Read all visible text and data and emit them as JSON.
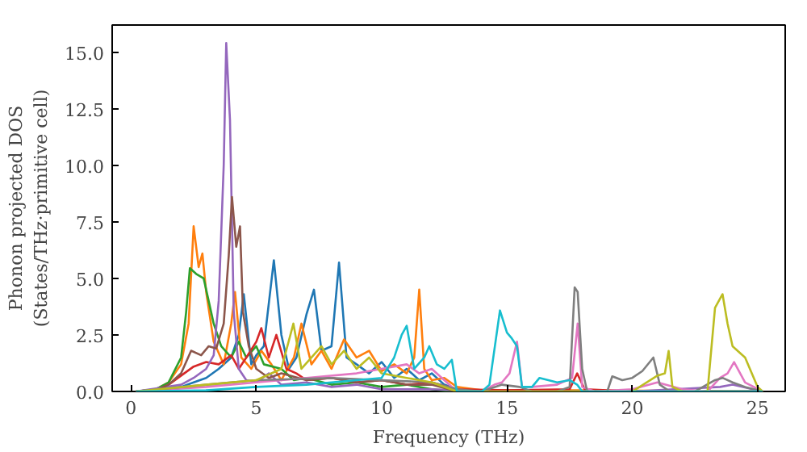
{
  "chart_data": {
    "type": "line",
    "xlabel": "Frequency (THz)",
    "ylabel": "Phonon projected DOS\n(States/THz·primitive cell)",
    "xlim": [
      -0.75,
      26.1
    ],
    "ylim": [
      0,
      16.2
    ],
    "xticks": [
      0,
      5,
      10,
      15,
      20,
      25
    ],
    "yticks": [
      {
        "value": 0,
        "label": "0.0"
      },
      {
        "value": 2.5,
        "label": "2.5"
      },
      {
        "value": 5,
        "label": "5.0"
      },
      {
        "value": 7.5,
        "label": "7.5"
      },
      {
        "value": 10,
        "label": "10.0"
      },
      {
        "value": 12.5,
        "label": "12.5"
      },
      {
        "value": 15,
        "label": "15.0"
      }
    ],
    "grid": false,
    "line_style": "solid",
    "series": [
      {
        "color": "#1f77b4",
        "x": [
          0.2,
          1,
          2,
          2.5,
          3,
          3.5,
          4,
          4.3,
          4.5,
          4.8,
          5,
          5.3,
          5.7,
          6,
          6.3,
          6.6,
          7,
          7.3,
          7.6,
          8,
          8.3,
          8.6,
          9,
          9.5,
          10,
          10.5,
          11,
          11.5,
          12,
          12.5,
          13,
          13.5,
          15,
          20,
          25.2
        ],
        "values": [
          0,
          0.05,
          0.2,
          0.4,
          0.6,
          1.0,
          1.5,
          2.5,
          4.3,
          1.2,
          1.6,
          2.0,
          5.8,
          2.5,
          1.0,
          1.5,
          3.4,
          4.5,
          1.8,
          2.0,
          5.7,
          1.5,
          1.2,
          0.8,
          1.3,
          0.6,
          1.0,
          0.5,
          0.8,
          0.3,
          0.1,
          0,
          0.05,
          0,
          0
        ]
      },
      {
        "color": "#ff7f0e",
        "x": [
          0.2,
          1,
          1.5,
          2,
          2.3,
          2.5,
          2.7,
          2.85,
          3,
          3.3,
          3.7,
          4.0,
          4.15,
          4.4,
          4.8,
          5.2,
          5.6,
          6,
          6.5,
          6.8,
          7.2,
          7.6,
          8,
          8.5,
          9,
          9.5,
          10,
          10.5,
          11,
          11.3,
          11.5,
          11.7,
          12,
          12.5,
          13,
          14,
          18,
          25.2
        ],
        "values": [
          0,
          0.1,
          0.4,
          1.2,
          3.0,
          7.3,
          5.5,
          6.1,
          4.4,
          2.2,
          1.2,
          3.0,
          4.4,
          1.5,
          1.0,
          1.8,
          1.2,
          0.5,
          1.5,
          3.0,
          1.2,
          1.8,
          1.0,
          2.3,
          1.5,
          1.8,
          0.9,
          1.2,
          0.8,
          1.5,
          4.5,
          1.0,
          0.5,
          0.6,
          0.2,
          0.05,
          0.05,
          0
        ]
      },
      {
        "color": "#2ca02c",
        "x": [
          0.2,
          1,
          1.5,
          2,
          2.2,
          2.35,
          2.6,
          2.9,
          3.1,
          3.3,
          3.6,
          4,
          4.3,
          4.6,
          5,
          5.3,
          6,
          6.5,
          7,
          8,
          9,
          10,
          11,
          12,
          13,
          15,
          25.2
        ],
        "values": [
          0,
          0.1,
          0.4,
          1.5,
          3.5,
          5.45,
          5.2,
          5.0,
          4.0,
          3.0,
          2.0,
          1.5,
          2.2,
          1.5,
          2.0,
          1.2,
          1.0,
          0.5,
          0.6,
          0.3,
          0.4,
          0.2,
          0.3,
          0.1,
          0,
          0,
          0
        ]
      },
      {
        "color": "#d62728",
        "x": [
          0.2,
          1,
          1.5,
          2,
          2.5,
          3,
          3.5,
          4,
          4.3,
          4.6,
          5,
          5.2,
          5.5,
          5.8,
          6.2,
          6.6,
          7,
          8,
          9,
          10,
          11,
          12,
          13,
          15,
          17.5,
          17.8,
          18.1,
          20,
          25.2
        ],
        "values": [
          0,
          0.05,
          0.3,
          0.7,
          1.1,
          1.3,
          1.2,
          1.6,
          1.0,
          1.5,
          2.2,
          2.8,
          1.5,
          2.5,
          1.0,
          0.8,
          0.5,
          0.6,
          0.4,
          0.5,
          0.3,
          0.4,
          0.1,
          0.05,
          0.1,
          0.8,
          0.1,
          0,
          0
        ]
      },
      {
        "color": "#9467bd",
        "x": [
          0.2,
          2,
          2.5,
          3,
          3.3,
          3.5,
          3.7,
          3.8,
          3.95,
          4.1,
          4.3,
          4.6,
          5,
          5.5,
          6,
          7,
          8,
          9,
          10,
          12,
          14,
          20,
          23.5,
          24,
          25.2
        ],
        "values": [
          0,
          0.3,
          0.6,
          1.0,
          1.6,
          4.0,
          10,
          15.4,
          12,
          3.5,
          1.0,
          0.5,
          0.4,
          0.8,
          0.3,
          0.4,
          0.2,
          0.3,
          0.1,
          0.1,
          0,
          0,
          0.2,
          0.3,
          0
        ]
      },
      {
        "color": "#8c564b",
        "x": [
          0.2,
          1,
          1.5,
          2,
          2.4,
          2.8,
          3.1,
          3.4,
          3.7,
          3.9,
          4.03,
          4.2,
          4.35,
          4.47,
          4.7,
          5,
          5.5,
          6,
          7,
          8,
          9,
          10,
          11,
          12,
          13,
          25.2
        ],
        "values": [
          0,
          0.05,
          0.3,
          0.8,
          1.8,
          1.6,
          2.0,
          1.9,
          3.0,
          6.0,
          8.6,
          6.4,
          7.3,
          3.5,
          2.0,
          1.0,
          0.6,
          0.8,
          0.5,
          0.6,
          0.4,
          0.5,
          0.3,
          0.3,
          0,
          0
        ]
      },
      {
        "color": "#e377c2",
        "x": [
          0.2,
          3,
          5,
          7,
          9,
          10,
          11,
          11.5,
          12,
          12.5,
          13,
          14,
          14.5,
          14.8,
          15.1,
          15.4,
          15.6,
          16,
          17,
          17.6,
          17.82,
          18,
          18.5,
          20,
          21,
          22,
          23,
          23.5,
          23.8,
          24.06,
          24.5,
          25.2
        ],
        "values": [
          0,
          0.2,
          0.4,
          0.6,
          0.8,
          1.0,
          1.2,
          0.8,
          1.0,
          0.5,
          0,
          0,
          0.3,
          0.4,
          0.8,
          2.2,
          0.2,
          0.2,
          0.3,
          0.6,
          3.0,
          0.2,
          0,
          0.1,
          0.4,
          0.1,
          0,
          0.6,
          0.8,
          1.3,
          0.4,
          0
        ]
      },
      {
        "color": "#7f7f7f",
        "x": [
          0.2,
          3,
          5,
          8,
          10,
          12,
          13,
          14,
          14.8,
          15.5,
          16,
          17,
          17.5,
          17.7,
          17.82,
          18,
          18.2,
          18.5,
          19,
          19.2,
          19.6,
          20,
          20.4,
          20.84,
          21.1,
          21.5,
          22.5,
          23.3,
          23.6,
          24,
          24.5,
          25.2
        ],
        "values": [
          0,
          0.3,
          0.5,
          0.6,
          0.5,
          0.4,
          0.1,
          0,
          0.3,
          0.2,
          0,
          0,
          0.2,
          4.6,
          4.4,
          1.0,
          0,
          0,
          0,
          0.67,
          0.5,
          0.6,
          0.9,
          1.5,
          0.3,
          0,
          0,
          0.5,
          0.6,
          0.4,
          0.2,
          0
        ]
      },
      {
        "color": "#bcbd22",
        "x": [
          0.2,
          3,
          5,
          6,
          6.48,
          6.8,
          7.2,
          7.6,
          8,
          8.5,
          9,
          9.5,
          10,
          11,
          12,
          13,
          20,
          21,
          21.3,
          21.45,
          21.6,
          22,
          23,
          23.3,
          23.6,
          23.8,
          24,
          24.5,
          25,
          25.2
        ],
        "values": [
          0,
          0.3,
          0.5,
          1.0,
          3.0,
          1.0,
          1.5,
          2.0,
          1.2,
          1.8,
          1.0,
          1.5,
          0.8,
          0.6,
          0.4,
          0,
          0,
          0.7,
          0.8,
          1.79,
          0.2,
          0,
          0,
          3.7,
          4.3,
          3.0,
          2.0,
          1.5,
          0.2,
          0
        ]
      },
      {
        "color": "#17becf",
        "x": [
          0.2,
          3,
          5,
          7,
          9,
          10,
          10.5,
          10.8,
          11.0,
          11.3,
          11.7,
          11.9,
          12.2,
          12.5,
          12.8,
          13,
          14,
          14.3,
          14.72,
          15,
          15.17,
          15.4,
          15.6,
          16,
          16.3,
          17,
          17.5,
          17.8,
          18,
          20,
          25.2
        ],
        "values": [
          0,
          0.05,
          0.2,
          0.3,
          0.5,
          0.6,
          1.5,
          2.5,
          2.9,
          1.0,
          1.5,
          2.0,
          1.2,
          1.0,
          1.4,
          0,
          0,
          0.3,
          3.58,
          2.6,
          2.38,
          2.0,
          0.2,
          0.2,
          0.6,
          0.4,
          0.5,
          0.3,
          0,
          0,
          0
        ]
      }
    ]
  }
}
